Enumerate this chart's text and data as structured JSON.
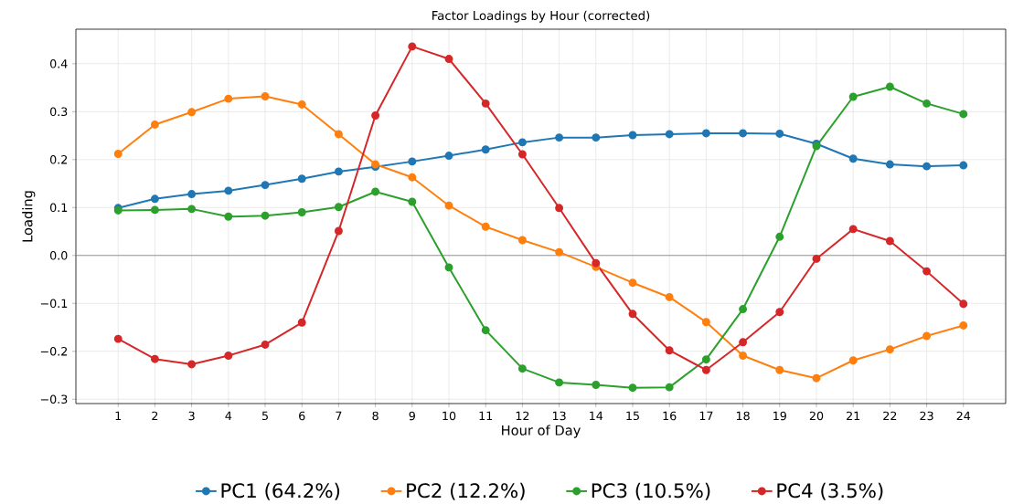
{
  "chart_data": {
    "type": "line",
    "title": "Factor Loadings by Hour (corrected)",
    "xlabel": "Hour of Day",
    "ylabel": "Loading",
    "x": [
      1,
      2,
      3,
      4,
      5,
      6,
      7,
      8,
      9,
      10,
      11,
      12,
      13,
      14,
      15,
      16,
      17,
      18,
      19,
      20,
      21,
      22,
      23,
      24
    ],
    "series": [
      {
        "name": "PC1 (64.2%)",
        "color": "#1f77b4",
        "values": [
          0.099,
          0.118,
          0.128,
          0.135,
          0.147,
          0.16,
          0.175,
          0.185,
          0.196,
          0.208,
          0.221,
          0.236,
          0.246,
          0.246,
          0.251,
          0.253,
          0.255,
          0.255,
          0.254,
          0.233,
          0.202,
          0.19,
          0.186,
          0.188
        ]
      },
      {
        "name": "PC2 (12.2%)",
        "color": "#ff7f0e",
        "values": [
          0.212,
          0.273,
          0.299,
          0.327,
          0.332,
          0.315,
          0.253,
          0.19,
          0.163,
          0.104,
          0.06,
          0.032,
          0.007,
          -0.024,
          -0.057,
          -0.087,
          -0.139,
          -0.209,
          -0.239,
          -0.256,
          -0.219,
          -0.196,
          -0.168,
          -0.146
        ]
      },
      {
        "name": "PC3 (10.5%)",
        "color": "#2ca02c",
        "values": [
          0.094,
          0.095,
          0.097,
          0.081,
          0.083,
          0.09,
          0.101,
          0.133,
          0.112,
          -0.025,
          -0.156,
          -0.236,
          -0.265,
          -0.27,
          -0.276,
          -0.275,
          -0.217,
          -0.112,
          0.039,
          0.228,
          0.331,
          0.352,
          0.317,
          0.295
        ]
      },
      {
        "name": "PC4 (3.5%)",
        "color": "#d62728",
        "values": [
          -0.174,
          -0.216,
          -0.227,
          -0.209,
          -0.186,
          -0.14,
          0.051,
          0.292,
          0.436,
          0.41,
          0.317,
          0.211,
          0.099,
          -0.016,
          -0.122,
          -0.198,
          -0.239,
          -0.181,
          -0.118,
          -0.007,
          0.055,
          0.03,
          -0.033,
          -0.101
        ]
      }
    ],
    "xlim": [
      -0.15,
      25.15
    ],
    "ylim": [
      -0.309,
      0.472
    ],
    "xticks": [
      1,
      2,
      3,
      4,
      5,
      6,
      7,
      8,
      9,
      10,
      11,
      12,
      13,
      14,
      15,
      16,
      17,
      18,
      19,
      20,
      21,
      22,
      23,
      24
    ],
    "yticks": [
      {
        "value": -0.3,
        "label": "−0.3"
      },
      {
        "value": -0.2,
        "label": "−0.2"
      },
      {
        "value": -0.1,
        "label": "−0.1"
      },
      {
        "value": 0.0,
        "label": "0.0"
      },
      {
        "value": 0.1,
        "label": "0.1"
      },
      {
        "value": 0.2,
        "label": "0.2"
      },
      {
        "value": 0.3,
        "label": "0.3"
      },
      {
        "value": 0.4,
        "label": "0.4"
      }
    ],
    "ref_lines": [
      {
        "axis": "y",
        "value": 0,
        "color": "#808080"
      }
    ],
    "grid": true,
    "legend": "bottom",
    "marker": "circle",
    "line_style": "solid"
  }
}
